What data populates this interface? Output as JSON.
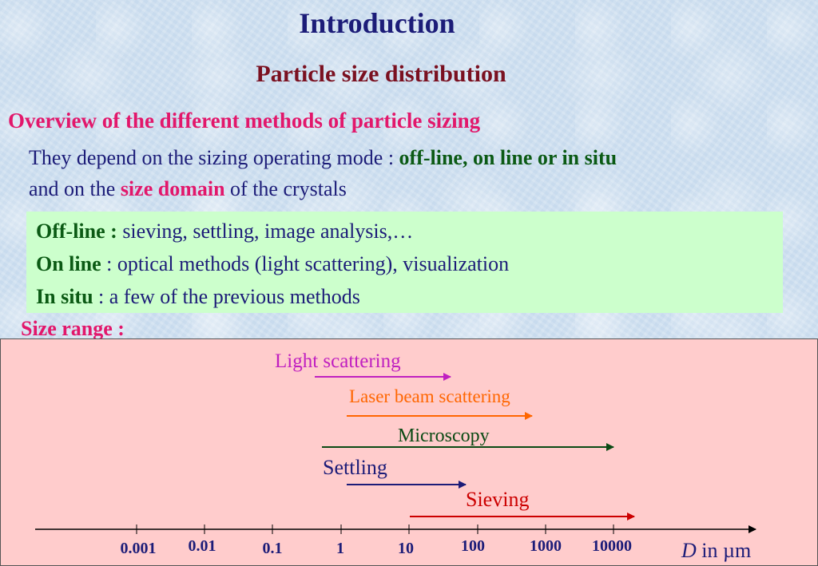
{
  "title": "Introduction",
  "subtitle": "Particle size distribution",
  "overview": "Overview of the different methods of particle sizing",
  "depends": {
    "line1_prefix": "They depend on the sizing operating mode : ",
    "line1_highlight": "off-line, on line or in situ",
    "line2_prefix": "and on the ",
    "line2_highlight": "size domain",
    "line2_suffix": " of the crystals"
  },
  "modes": [
    {
      "name": "Off-line :",
      "desc": " sieving, settling, image analysis,…"
    },
    {
      "name": "On line",
      "desc": " : optical methods (light scattering), visualization"
    },
    {
      "name": "In situ",
      "desc": " : a few of the previous methods"
    }
  ],
  "size_range_label": "Size range :",
  "axis": {
    "ticks": [
      "0.001",
      "0.01",
      "0.1",
      "1",
      "10",
      "100",
      "1000",
      "10000"
    ],
    "label_var": "D",
    "label_unit": " in µm"
  },
  "methods": [
    {
      "name": "Light scattering",
      "color": "#c020c0"
    },
    {
      "name": "Laser beam scattering",
      "color": "#ff6600"
    },
    {
      "name": "Microscopy",
      "color": "#0b4a14"
    },
    {
      "name": "Settling",
      "color": "#1c1c78"
    },
    {
      "name": "Sieving",
      "color": "#cc0000"
    }
  ]
}
